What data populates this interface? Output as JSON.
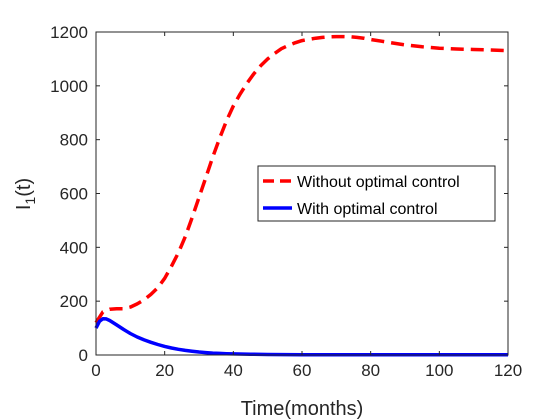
{
  "chart_data": {
    "type": "line",
    "title": "",
    "xlabel": "Time(months)",
    "ylabel": {
      "base": "I",
      "subscript": "1",
      "suffix": "(t)"
    },
    "xlim": [
      0,
      120
    ],
    "ylim": [
      0,
      1200
    ],
    "xticks": [
      0,
      20,
      40,
      60,
      80,
      100,
      120
    ],
    "yticks": [
      0,
      200,
      400,
      600,
      800,
      1000,
      1200
    ],
    "grid": false,
    "legend_position": "middle-right",
    "series": [
      {
        "name": "Without optimal control",
        "color": "#ff0000",
        "style": "dashed",
        "x": [
          0,
          2,
          4,
          6,
          8,
          10,
          12,
          14,
          16,
          18,
          20,
          22,
          24,
          26,
          28,
          30,
          32,
          34,
          36,
          38,
          40,
          42,
          44,
          46,
          48,
          50,
          52,
          54,
          56,
          58,
          60,
          62,
          64,
          66,
          68,
          70,
          72,
          74,
          76,
          78,
          80,
          85,
          90,
          95,
          100,
          105,
          110,
          115,
          120
        ],
        "y": [
          120,
          160,
          170,
          172,
          172,
          178,
          190,
          205,
          225,
          250,
          285,
          330,
          380,
          440,
          510,
          585,
          660,
          735,
          805,
          870,
          925,
          970,
          1010,
          1045,
          1075,
          1100,
          1120,
          1138,
          1150,
          1160,
          1168,
          1173,
          1177,
          1180,
          1182,
          1183,
          1183,
          1182,
          1180,
          1177,
          1172,
          1162,
          1152,
          1145,
          1140,
          1137,
          1135,
          1133,
          1131
        ]
      },
      {
        "name": "With optimal control",
        "color": "#0000ff",
        "style": "solid",
        "x": [
          0,
          1,
          2,
          3,
          4,
          6,
          8,
          10,
          12,
          14,
          16,
          18,
          20,
          22,
          24,
          26,
          28,
          30,
          32,
          34,
          36,
          38,
          40,
          45,
          50,
          55,
          60,
          70,
          80,
          90,
          100,
          110,
          120
        ],
        "y": [
          100,
          125,
          135,
          134,
          128,
          112,
          95,
          80,
          67,
          56,
          47,
          39,
          32,
          26,
          21,
          17,
          14,
          11,
          9,
          7,
          6,
          5,
          4,
          3,
          2,
          1.5,
          1,
          1,
          1,
          1,
          1,
          1,
          1
        ]
      }
    ]
  }
}
